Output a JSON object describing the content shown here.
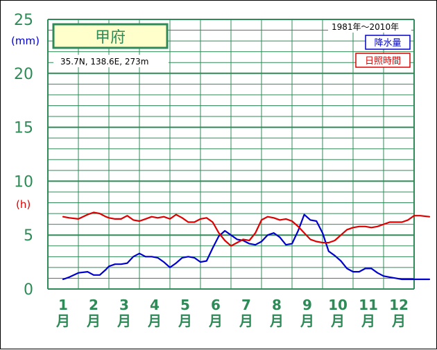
{
  "chart_data": {
    "type": "line",
    "title": "甲府",
    "location": "35.7N,  138.6E,  273m",
    "period": "1981年〜2010年",
    "categories": [
      "1",
      "2",
      "3",
      "4",
      "5",
      "6",
      "7",
      "8",
      "9",
      "10",
      "11",
      "12"
    ],
    "x_suffix": "月",
    "y_ticks": [
      "0",
      "5",
      "10",
      "15",
      "20",
      "25"
    ],
    "ylim": [
      0,
      25
    ],
    "y_units": [
      "(mm)",
      "(h)"
    ],
    "grid": true,
    "legend_position": "top-right",
    "series": [
      {
        "name": "降水量",
        "color": "#0000cc",
        "x": [
          0.5,
          0.7,
          1.0,
          1.3,
          1.5,
          1.7,
          1.9,
          2.0,
          2.2,
          2.4,
          2.6,
          2.8,
          3.0,
          3.2,
          3.4,
          3.6,
          3.8,
          4.0,
          4.2,
          4.4,
          4.6,
          4.8,
          5.0,
          5.2,
          5.4,
          5.6,
          5.8,
          6.0,
          6.2,
          6.4,
          6.6,
          6.8,
          7.0,
          7.2,
          7.4,
          7.6,
          7.8,
          8.0,
          8.2,
          8.4,
          8.6,
          8.8,
          9.0,
          9.2,
          9.4,
          9.6,
          9.8,
          10.0,
          10.2,
          10.4,
          10.6,
          10.8,
          11.0,
          11.2,
          11.4,
          11.6,
          11.8,
          12.0,
          12.2,
          12.5
        ],
        "values": [
          0.9,
          1.1,
          1.5,
          1.6,
          1.3,
          1.3,
          1.8,
          2.1,
          2.3,
          2.3,
          2.4,
          3.0,
          3.3,
          3.0,
          3.0,
          2.9,
          2.5,
          2.0,
          2.4,
          2.9,
          3.0,
          2.9,
          2.5,
          2.6,
          3.8,
          4.9,
          5.4,
          5.0,
          4.6,
          4.5,
          4.2,
          4.1,
          4.4,
          5.0,
          5.2,
          4.8,
          4.1,
          4.2,
          5.4,
          6.9,
          6.4,
          6.3,
          5.2,
          3.5,
          3.1,
          2.6,
          1.9,
          1.6,
          1.6,
          1.9,
          1.9,
          1.5,
          1.2,
          1.1,
          1.0,
          0.9,
          0.9,
          0.9,
          0.9,
          0.9
        ]
      },
      {
        "name": "日照時間",
        "color": "#dd0000",
        "x": [
          0.5,
          0.7,
          1.0,
          1.3,
          1.5,
          1.7,
          1.9,
          2.0,
          2.2,
          2.4,
          2.6,
          2.8,
          3.0,
          3.2,
          3.4,
          3.6,
          3.8,
          4.0,
          4.2,
          4.4,
          4.6,
          4.8,
          5.0,
          5.2,
          5.4,
          5.6,
          5.8,
          6.0,
          6.2,
          6.4,
          6.6,
          6.8,
          7.0,
          7.2,
          7.4,
          7.6,
          7.8,
          8.0,
          8.2,
          8.4,
          8.6,
          8.8,
          9.0,
          9.2,
          9.4,
          9.6,
          9.8,
          10.0,
          10.2,
          10.4,
          10.6,
          10.8,
          11.0,
          11.2,
          11.4,
          11.6,
          11.8,
          12.0,
          12.2,
          12.5
        ],
        "values": [
          6.7,
          6.6,
          6.5,
          6.9,
          7.1,
          7.0,
          6.7,
          6.6,
          6.5,
          6.5,
          6.8,
          6.4,
          6.3,
          6.5,
          6.7,
          6.6,
          6.7,
          6.5,
          6.9,
          6.6,
          6.2,
          6.2,
          6.5,
          6.6,
          6.2,
          5.2,
          4.5,
          4.0,
          4.3,
          4.6,
          4.5,
          5.2,
          6.4,
          6.7,
          6.6,
          6.4,
          6.5,
          6.3,
          5.8,
          5.2,
          4.6,
          4.4,
          4.3,
          4.3,
          4.5,
          5.0,
          5.5,
          5.7,
          5.8,
          5.8,
          5.7,
          5.8,
          6.0,
          6.2,
          6.2,
          6.2,
          6.4,
          6.8,
          6.8,
          6.7
        ]
      }
    ]
  },
  "colors": {
    "grid": "#2e8b57",
    "axis_text": "#2e8b57",
    "precip_unit": "#0000cc",
    "sun_unit": "#dd0000",
    "title_box_fill": "#ffffcc"
  }
}
